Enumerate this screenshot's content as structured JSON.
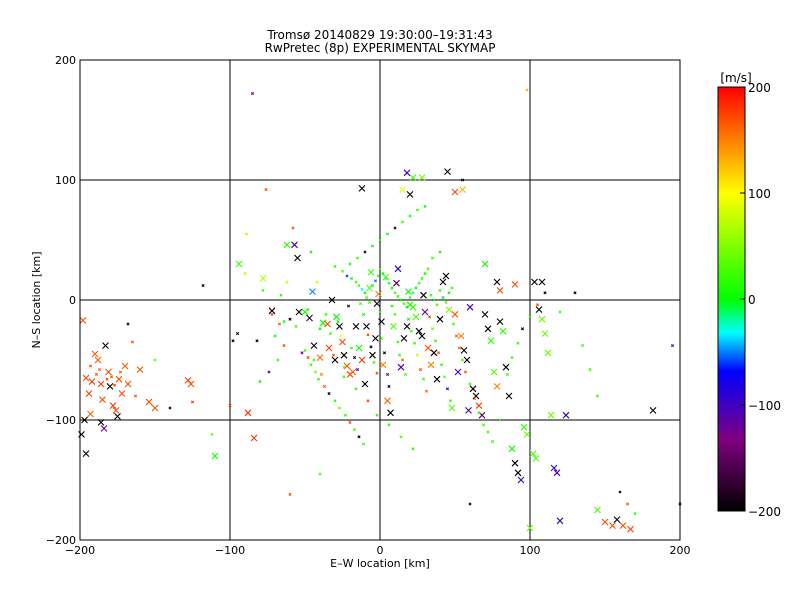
{
  "chart_data": {
    "type": "scatter",
    "title": "Tromsø 20140829 19:30:00–19:31:43",
    "subtitle": "RwPretec (8p) EXPERIMENTAL SKYMAP",
    "xlabel": "E–W location [km]",
    "ylabel": "N–S location [km]",
    "xlim": [
      -200,
      200
    ],
    "ylim": [
      -200,
      200
    ],
    "x_ticks": [
      -200,
      -100,
      0,
      100,
      200
    ],
    "y_ticks": [
      -200,
      -100,
      0,
      100,
      200
    ],
    "x_tick_labels": [
      "−200",
      "−100",
      "0",
      "100",
      "200"
    ],
    "y_tick_labels": [
      "−200",
      "−100",
      "0",
      "100",
      "200"
    ],
    "grid": true,
    "colorbar": {
      "label": "[m/s]",
      "range": [
        -200,
        200
      ],
      "ticks": [
        200,
        100,
        0,
        -100,
        -200
      ],
      "tick_labels": [
        "200",
        "100",
        "0",
        "−100",
        "−200"
      ],
      "colors": [
        "#000000",
        "#800080",
        "#0000ff",
        "#00ffff",
        "#00ff00",
        "#ffff00",
        "#ff0000"
      ]
    },
    "points_large": [
      [
        -198,
        -17,
        170
      ],
      [
        -196,
        -65,
        170
      ],
      [
        -194,
        -78,
        175
      ],
      [
        -193,
        -95,
        160
      ],
      [
        -197,
        -100,
        -200
      ],
      [
        -199,
        -112,
        -200
      ],
      [
        -196,
        -128,
        -200
      ],
      [
        -192,
        -68,
        180
      ],
      [
        -190,
        -45,
        165
      ],
      [
        -188,
        -50,
        165
      ],
      [
        -186,
        -70,
        175
      ],
      [
        -185,
        -83,
        170
      ],
      [
        -186,
        -102,
        -200
      ],
      [
        -184,
        -107,
        -120
      ],
      [
        -183,
        -38,
        -200
      ],
      [
        -181,
        -60,
        170
      ],
      [
        -180,
        -72,
        -200
      ],
      [
        -178,
        -88,
        180
      ],
      [
        -176,
        -92,
        170
      ],
      [
        -175,
        -97,
        -200
      ],
      [
        -174,
        -66,
        170
      ],
      [
        -172,
        -78,
        170
      ],
      [
        -170,
        -55,
        165
      ],
      [
        -168,
        -70,
        170
      ],
      [
        -160,
        -58,
        170
      ],
      [
        -154,
        -85,
        175
      ],
      [
        -150,
        -90,
        170
      ],
      [
        -128,
        -67,
        175
      ],
      [
        -126,
        -70,
        170
      ],
      [
        -110,
        -130,
        0
      ],
      [
        -94,
        30,
        20
      ],
      [
        -88,
        -94,
        180
      ],
      [
        -84,
        -115,
        180
      ],
      [
        -78,
        18,
        70
      ],
      [
        -72,
        -9,
        -200
      ],
      [
        -62,
        46,
        20
      ],
      [
        -57,
        46,
        -100
      ],
      [
        -55,
        35,
        -200
      ],
      [
        -54,
        -10,
        -200
      ],
      [
        -50,
        -10,
        0
      ],
      [
        -47,
        -15,
        -180
      ],
      [
        -45,
        7,
        -50
      ],
      [
        -44,
        -38,
        -200
      ],
      [
        -40,
        -48,
        160
      ],
      [
        -38,
        -19,
        0
      ],
      [
        -35,
        -20,
        170
      ],
      [
        -34,
        -40,
        175
      ],
      [
        -32,
        0,
        -200
      ],
      [
        -30,
        -50,
        -200
      ],
      [
        -29,
        -14,
        0
      ],
      [
        -27,
        -22,
        -200
      ],
      [
        -25,
        -35,
        170
      ],
      [
        -24,
        -46,
        -200
      ],
      [
        -22,
        -55,
        170
      ],
      [
        -20,
        -62,
        180
      ],
      [
        -18,
        -60,
        160
      ],
      [
        -16,
        -22,
        -200
      ],
      [
        -14,
        -40,
        0
      ],
      [
        -12,
        -50,
        180
      ],
      [
        -10,
        -70,
        -200
      ],
      [
        -9,
        -22,
        -200
      ],
      [
        -7,
        10,
        30
      ],
      [
        -6,
        23,
        20
      ],
      [
        -5,
        -46,
        -200
      ],
      [
        -3,
        -32,
        -200
      ],
      [
        -2,
        -3,
        -200
      ],
      [
        -1,
        5,
        150
      ],
      [
        1,
        -18,
        -200
      ],
      [
        2,
        -54,
        150
      ],
      [
        4,
        19,
        40
      ],
      [
        5,
        -84,
        160
      ],
      [
        7,
        -94,
        -200
      ],
      [
        9,
        -22,
        30
      ],
      [
        11,
        14,
        -150
      ],
      [
        12,
        26,
        -90
      ],
      [
        14,
        -56,
        -100
      ],
      [
        16,
        -32,
        -200
      ],
      [
        18,
        -22,
        -200
      ],
      [
        19,
        7,
        0
      ],
      [
        20,
        -4,
        10
      ],
      [
        22,
        -6,
        20
      ],
      [
        24,
        -14,
        30
      ],
      [
        26,
        -26,
        -200
      ],
      [
        28,
        -30,
        -200
      ],
      [
        29,
        4,
        -200
      ],
      [
        30,
        -10,
        -120
      ],
      [
        32,
        -40,
        170
      ],
      [
        34,
        -54,
        150
      ],
      [
        36,
        -44,
        -200
      ],
      [
        38,
        -66,
        -200
      ],
      [
        40,
        -16,
        -200
      ],
      [
        42,
        15,
        -200
      ],
      [
        44,
        20,
        -200
      ],
      [
        46,
        -8,
        50
      ],
      [
        48,
        -90,
        30
      ],
      [
        50,
        -12,
        170
      ],
      [
        52,
        -60,
        -100
      ],
      [
        54,
        -30,
        150
      ],
      [
        56,
        -42,
        -200
      ],
      [
        58,
        -50,
        -200
      ],
      [
        59,
        -92,
        -100
      ],
      [
        60,
        -6,
        -100
      ],
      [
        62,
        -74,
        -200
      ],
      [
        64,
        -80,
        -200
      ],
      [
        66,
        -88,
        180
      ],
      [
        68,
        -96,
        -150
      ],
      [
        70,
        -12,
        -200
      ],
      [
        72,
        -24,
        -200
      ],
      [
        74,
        -34,
        20
      ],
      [
        76,
        -60,
        30
      ],
      [
        78,
        -72,
        150
      ],
      [
        80,
        -18,
        -200
      ],
      [
        82,
        -26,
        20
      ],
      [
        84,
        -56,
        -200
      ],
      [
        86,
        -80,
        -200
      ],
      [
        88,
        -124,
        0
      ],
      [
        90,
        -136,
        -200
      ],
      [
        92,
        -144,
        -200
      ],
      [
        94,
        -150,
        -100
      ],
      [
        96,
        -106,
        20
      ],
      [
        98,
        -112,
        40
      ],
      [
        100,
        -190,
        40
      ],
      [
        102,
        -128,
        30
      ],
      [
        104,
        -132,
        30
      ],
      [
        106,
        -8,
        -200
      ],
      [
        108,
        -16,
        40
      ],
      [
        110,
        -28,
        40
      ],
      [
        112,
        -44,
        40
      ],
      [
        114,
        -96,
        40
      ],
      [
        116,
        -140,
        -100
      ],
      [
        118,
        -144,
        -100
      ],
      [
        120,
        -184,
        -100
      ],
      [
        124,
        -96,
        -100
      ],
      [
        150,
        -185,
        170
      ],
      [
        155,
        -188,
        170
      ],
      [
        158,
        -183,
        -200
      ],
      [
        162,
        -188,
        170
      ],
      [
        167,
        -191,
        170
      ],
      [
        145,
        -175,
        30
      ],
      [
        182,
        -92,
        -200
      ],
      [
        103,
        15,
        -200
      ],
      [
        108,
        15,
        -200
      ],
      [
        78,
        15,
        -200
      ],
      [
        80,
        8,
        170
      ],
      [
        90,
        13,
        170
      ],
      [
        70,
        30,
        0
      ],
      [
        50,
        90,
        170
      ],
      [
        55,
        92,
        130
      ],
      [
        28,
        102,
        40
      ],
      [
        18,
        106,
        -100
      ],
      [
        22,
        102,
        20
      ],
      [
        45,
        107,
        -200
      ],
      [
        20,
        88,
        -200
      ],
      [
        -12,
        93,
        -200
      ],
      [
        15,
        92,
        90
      ]
    ],
    "points_small": [
      [
        -193,
        -55,
        170
      ],
      [
        -189,
        -62,
        170
      ],
      [
        -187,
        -58,
        165
      ],
      [
        -182,
        -66,
        170
      ],
      [
        -179,
        -64,
        170
      ],
      [
        -177,
        -71,
        175
      ],
      [
        -173,
        -60,
        165
      ],
      [
        -168,
        -20,
        -200
      ],
      [
        -165,
        -35,
        170
      ],
      [
        -163,
        -80,
        170
      ],
      [
        -150,
        -50,
        40
      ],
      [
        -140,
        -90,
        -200
      ],
      [
        -125,
        -85,
        180
      ],
      [
        -118,
        12,
        -200
      ],
      [
        -112,
        -112,
        40
      ],
      [
        -100,
        -88,
        170
      ],
      [
        -98,
        -34,
        -200
      ],
      [
        -95,
        -28,
        -200
      ],
      [
        -90,
        22,
        70
      ],
      [
        -89,
        55,
        70
      ],
      [
        -85,
        172,
        -150
      ],
      [
        -82,
        -34,
        -200
      ],
      [
        -80,
        -68,
        0
      ],
      [
        -76,
        92,
        170
      ],
      [
        -74,
        -60,
        -100
      ],
      [
        -70,
        -30,
        0
      ],
      [
        -67,
        -20,
        170
      ],
      [
        -64,
        -18,
        0
      ],
      [
        -62,
        15,
        80
      ],
      [
        -58,
        60,
        170
      ],
      [
        -56,
        -22,
        20
      ],
      [
        -52,
        -44,
        -120
      ],
      [
        -48,
        -8,
        20
      ],
      [
        -46,
        40,
        0
      ],
      [
        -44,
        -50,
        20
      ],
      [
        -42,
        15,
        80
      ],
      [
        -40,
        -24,
        0
      ],
      [
        -39,
        -62,
        150
      ],
      [
        -36,
        -12,
        20
      ],
      [
        -33,
        -28,
        20
      ],
      [
        -31,
        -46,
        170
      ],
      [
        -28,
        -18,
        0
      ],
      [
        -26,
        -30,
        100
      ],
      [
        -24,
        -56,
        40
      ],
      [
        -21,
        -5,
        -200
      ],
      [
        -19,
        -40,
        20
      ],
      [
        -17,
        -48,
        -200
      ],
      [
        -15,
        -58,
        -100
      ],
      [
        -13,
        -3,
        20
      ],
      [
        -11,
        -12,
        0
      ],
      [
        -8,
        -29,
        170
      ],
      [
        -6,
        -39,
        -200
      ],
      [
        -4,
        -52,
        20
      ],
      [
        -2,
        -61,
        170
      ],
      [
        0,
        -10,
        20
      ],
      [
        1,
        -32,
        20
      ],
      [
        3,
        -44,
        -200
      ],
      [
        5,
        -62,
        -150
      ],
      [
        6,
        -72,
        -200
      ],
      [
        8,
        -5,
        0
      ],
      [
        10,
        -12,
        30
      ],
      [
        12,
        -35,
        20
      ],
      [
        13,
        -46,
        20
      ],
      [
        15,
        -50,
        170
      ],
      [
        17,
        -62,
        20
      ],
      [
        19,
        -16,
        0
      ],
      [
        21,
        -26,
        20
      ],
      [
        23,
        -36,
        20
      ],
      [
        25,
        -46,
        80
      ],
      [
        27,
        -58,
        170
      ],
      [
        29,
        -66,
        20
      ],
      [
        31,
        -76,
        160
      ],
      [
        33,
        -14,
        170
      ],
      [
        35,
        -24,
        40
      ],
      [
        37,
        -34,
        20
      ],
      [
        39,
        -44,
        170
      ],
      [
        41,
        -54,
        20
      ],
      [
        43,
        -64,
        40
      ],
      [
        45,
        -74,
        -100
      ],
      [
        47,
        -84,
        20
      ],
      [
        49,
        -20,
        20
      ],
      [
        51,
        -30,
        170
      ],
      [
        53,
        -40,
        170
      ],
      [
        55,
        -50,
        20
      ],
      [
        57,
        -60,
        170
      ],
      [
        60,
        -70,
        20
      ],
      [
        63,
        -82,
        170
      ],
      [
        66,
        -94,
        20
      ],
      [
        69,
        -104,
        20
      ],
      [
        72,
        -110,
        20
      ],
      [
        75,
        -118,
        20
      ],
      [
        -30,
        28,
        20
      ],
      [
        -25,
        24,
        30
      ],
      [
        -22,
        20,
        -60
      ],
      [
        -19,
        18,
        0
      ],
      [
        -16,
        15,
        20
      ],
      [
        -14,
        12,
        30
      ],
      [
        -12,
        9,
        -30
      ],
      [
        -10,
        6,
        0
      ],
      [
        -9,
        2,
        20
      ],
      [
        -7,
        -2,
        30
      ],
      [
        -5,
        12,
        0
      ],
      [
        -3,
        16,
        -50
      ],
      [
        -1,
        20,
        0
      ],
      [
        0,
        26,
        30
      ],
      [
        2,
        22,
        0
      ],
      [
        4,
        18,
        -20
      ],
      [
        6,
        14,
        20
      ],
      [
        8,
        10,
        0
      ],
      [
        10,
        6,
        30
      ],
      [
        12,
        3,
        20
      ],
      [
        14,
        0,
        0
      ],
      [
        16,
        -3,
        30
      ],
      [
        18,
        -6,
        0
      ],
      [
        20,
        2,
        20
      ],
      [
        22,
        6,
        -20
      ],
      [
        24,
        10,
        0
      ],
      [
        26,
        14,
        30
      ],
      [
        28,
        18,
        20
      ],
      [
        30,
        22,
        0
      ],
      [
        32,
        26,
        30
      ],
      [
        34,
        4,
        20
      ],
      [
        36,
        0,
        0
      ],
      [
        38,
        -4,
        30
      ],
      [
        40,
        8,
        20
      ],
      [
        42,
        2,
        0
      ],
      [
        44,
        -2,
        30
      ],
      [
        46,
        6,
        0
      ],
      [
        48,
        10,
        20
      ],
      [
        -20,
        30,
        0
      ],
      [
        -15,
        35,
        20
      ],
      [
        -10,
        40,
        -200
      ],
      [
        -5,
        45,
        0
      ],
      [
        0,
        50,
        20
      ],
      [
        5,
        55,
        0
      ],
      [
        10,
        60,
        -200
      ],
      [
        15,
        65,
        20
      ],
      [
        20,
        70,
        0
      ],
      [
        25,
        75,
        20
      ],
      [
        30,
        78,
        0
      ],
      [
        35,
        35,
        20
      ],
      [
        40,
        40,
        0
      ],
      [
        -50,
        -42,
        20
      ],
      [
        -48,
        -48,
        170
      ],
      [
        -46,
        -54,
        20
      ],
      [
        -43,
        -60,
        40
      ],
      [
        -41,
        -66,
        20
      ],
      [
        -37,
        -72,
        170
      ],
      [
        -34,
        -78,
        -200
      ],
      [
        -30,
        -84,
        20
      ],
      [
        -27,
        -90,
        40
      ],
      [
        -23,
        -96,
        20
      ],
      [
        -20,
        -102,
        170
      ],
      [
        -17,
        -108,
        20
      ],
      [
        -14,
        -114,
        -200
      ],
      [
        -11,
        -120,
        20
      ],
      [
        80,
        -100,
        20
      ],
      [
        85,
        -62,
        20
      ],
      [
        88,
        -48,
        20
      ],
      [
        92,
        -36,
        20
      ],
      [
        95,
        -24,
        -200
      ],
      [
        100,
        -14,
        20
      ],
      [
        105,
        -4,
        170
      ],
      [
        110,
        6,
        -200
      ],
      [
        120,
        -10,
        20
      ],
      [
        130,
        6,
        -200
      ],
      [
        135,
        -38,
        20
      ],
      [
        140,
        -58,
        20
      ],
      [
        145,
        -80,
        20
      ],
      [
        160,
        -160,
        -200
      ],
      [
        165,
        -170,
        170
      ],
      [
        170,
        -178,
        20
      ],
      [
        -60,
        -16,
        -200
      ],
      [
        -66,
        4,
        20
      ],
      [
        -72,
        -12,
        170
      ],
      [
        -78,
        8,
        20
      ],
      [
        -64,
        -38,
        170
      ],
      [
        -68,
        -50,
        20
      ],
      [
        -24,
        -64,
        20
      ],
      [
        -16,
        -74,
        20
      ],
      [
        -8,
        -84,
        170
      ],
      [
        -2,
        -96,
        20
      ],
      [
        6,
        -104,
        20
      ],
      [
        14,
        -114,
        40
      ],
      [
        22,
        -124,
        20
      ],
      [
        -40,
        -145,
        20
      ],
      [
        -60,
        -162,
        170
      ],
      [
        60,
        -170,
        -200
      ],
      [
        98,
        175,
        130
      ],
      [
        200,
        -170,
        -200
      ],
      [
        195,
        -38,
        -100
      ],
      [
        55,
        100,
        -200
      ]
    ]
  }
}
